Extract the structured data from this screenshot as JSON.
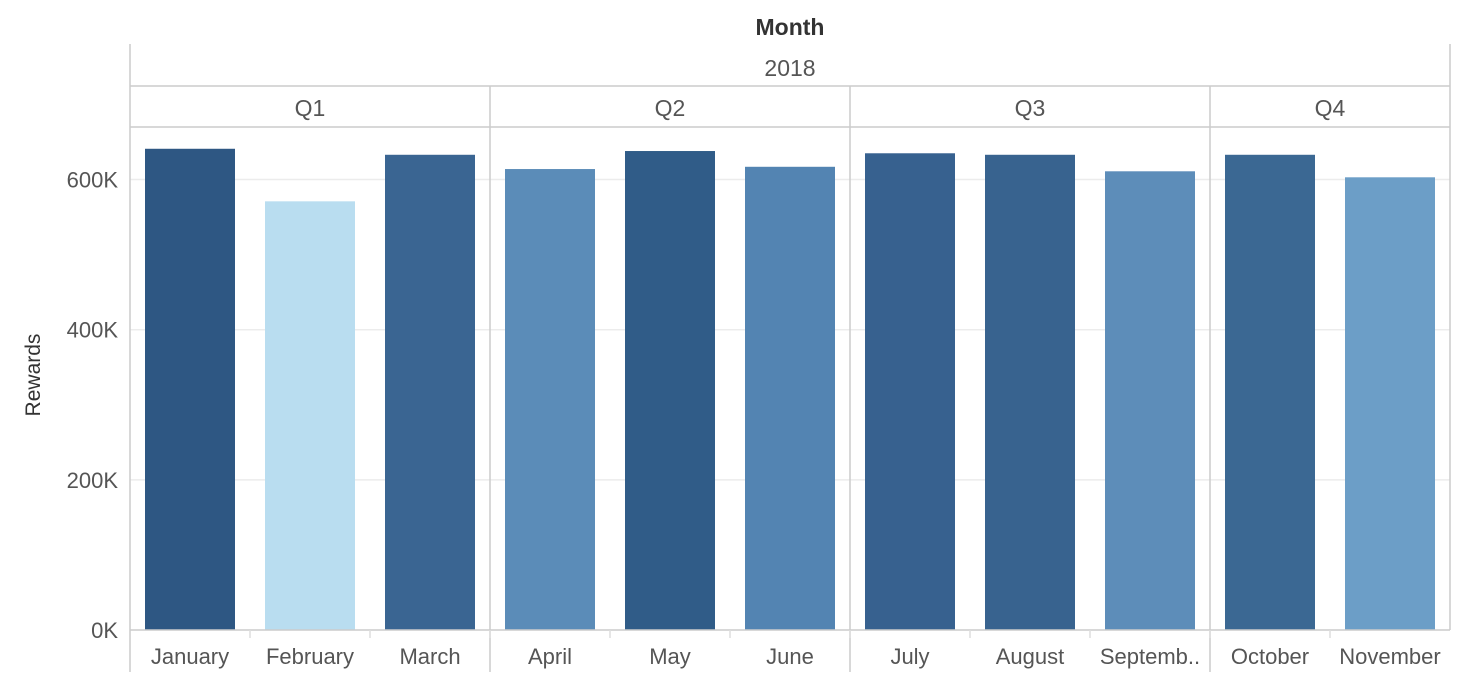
{
  "chart_data": {
    "type": "bar",
    "title": "Month",
    "year_label": "2018",
    "ylabel": "Rewards",
    "xlabel": "",
    "ylim": [
      0,
      670000
    ],
    "y_ticks": [
      {
        "value": 0,
        "label": "0K"
      },
      {
        "value": 200000,
        "label": "200K"
      },
      {
        "value": 400000,
        "label": "400K"
      },
      {
        "value": 600000,
        "label": "600K"
      }
    ],
    "grid": true,
    "legend": "none",
    "quarters": [
      {
        "label": "Q1",
        "start": 0,
        "count": 3
      },
      {
        "label": "Q2",
        "start": 3,
        "count": 3
      },
      {
        "label": "Q3",
        "start": 6,
        "count": 3
      },
      {
        "label": "Q4",
        "start": 9,
        "count": 2
      }
    ],
    "categories": [
      "January",
      "February",
      "March",
      "April",
      "May",
      "June",
      "July",
      "August",
      "Septemb..",
      "October",
      "November"
    ],
    "values": [
      641000,
      571000,
      633000,
      614000,
      638000,
      617000,
      635000,
      633000,
      611000,
      633000,
      603000
    ],
    "colors": [
      "#2e5783",
      "#b9ddf0",
      "#3a6592",
      "#5b8cb8",
      "#305c88",
      "#5384b2",
      "#37618f",
      "#38638f",
      "#5d8db9",
      "#3b6893",
      "#6c9ec7"
    ]
  }
}
